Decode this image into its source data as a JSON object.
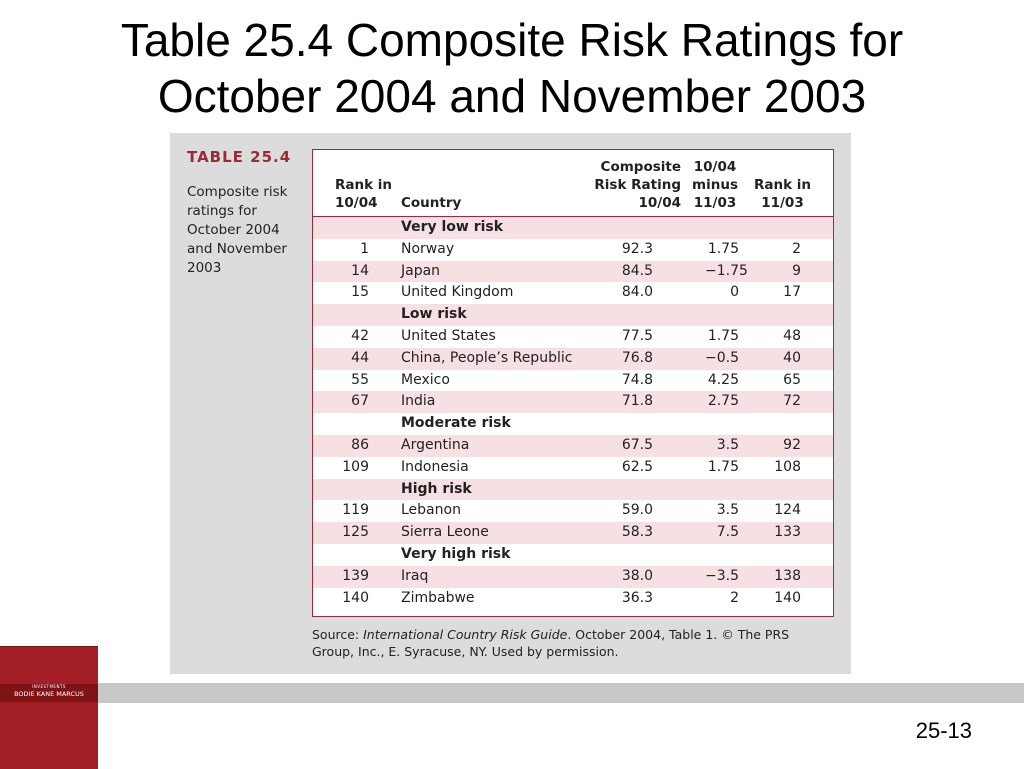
{
  "slide": {
    "title_line1": "Table 25.4 Composite Risk Ratings for",
    "title_line2": "October 2004 and November 2003",
    "page_number": "25-13"
  },
  "table": {
    "label": "TABLE 25.4",
    "caption_lines": [
      "Composite risk",
      "ratings for",
      "October 2004",
      "and November",
      "2003"
    ],
    "headers": {
      "rank_10_04": [
        "Rank in",
        "10/04"
      ],
      "country": [
        "Country"
      ],
      "composite": [
        "Composite",
        "Risk Rating",
        "10/04"
      ],
      "diff": [
        "10/04",
        "minus",
        "11/03"
      ],
      "rank_11_03": [
        "Rank in",
        "11/03"
      ]
    },
    "groups": [
      {
        "label": "Very low risk",
        "rows": [
          {
            "rank_10_04": "1",
            "country": "Norway",
            "composite": "92.3",
            "diff": "1.75",
            "rank_11_03": "2"
          },
          {
            "rank_10_04": "14",
            "country": "Japan",
            "composite": "84.5",
            "diff": "−1.75",
            "rank_11_03": "9"
          },
          {
            "rank_10_04": "15",
            "country": "United Kingdom",
            "composite": "84.0",
            "diff": "0",
            "rank_11_03": "17"
          }
        ]
      },
      {
        "label": "Low risk",
        "rows": [
          {
            "rank_10_04": "42",
            "country": "United States",
            "composite": "77.5",
            "diff": "1.75",
            "rank_11_03": "48"
          },
          {
            "rank_10_04": "44",
            "country": "China, People’s Republic",
            "composite": "76.8",
            "diff": "−0.5",
            "rank_11_03": "40"
          },
          {
            "rank_10_04": "55",
            "country": "Mexico",
            "composite": "74.8",
            "diff": "4.25",
            "rank_11_03": "65"
          },
          {
            "rank_10_04": "67",
            "country": "India",
            "composite": "71.8",
            "diff": "2.75",
            "rank_11_03": "72"
          }
        ]
      },
      {
        "label": "Moderate risk",
        "rows": [
          {
            "rank_10_04": "86",
            "country": "Argentina",
            "composite": "67.5",
            "diff": "3.5",
            "rank_11_03": "92"
          },
          {
            "rank_10_04": "109",
            "country": "Indonesia",
            "composite": "62.5",
            "diff": "1.75",
            "rank_11_03": "108"
          }
        ]
      },
      {
        "label": "High risk",
        "rows": [
          {
            "rank_10_04": "119",
            "country": "Lebanon",
            "composite": "59.0",
            "diff": "3.5",
            "rank_11_03": "124"
          },
          {
            "rank_10_04": "125",
            "country": "Sierra Leone",
            "composite": "58.3",
            "diff": "7.5",
            "rank_11_03": "133"
          }
        ]
      },
      {
        "label": "Very high risk",
        "rows": [
          {
            "rank_10_04": "139",
            "country": "Iraq",
            "composite": "38.0",
            "diff": "−3.5",
            "rank_11_03": "138"
          },
          {
            "rank_10_04": "140",
            "country": "Zimbabwe",
            "composite": "36.3",
            "diff": "2",
            "rank_11_03": "140"
          }
        ]
      }
    ],
    "source": {
      "prefix": "Source: ",
      "italic": "International Country Risk Guide",
      "suffix": ". October 2004, Table 1. © The PRS Group, Inc., E. Syracuse, NY. Used by permission."
    }
  },
  "book_cover": {
    "tag_top": "INVESTMENTS",
    "tag_bottom": "BODIE   KANE   MARCUS"
  },
  "colors": {
    "accent": "#a0283a",
    "row_shade": "#f6e0e3",
    "panel": "#dcdcdc",
    "band": "#c8c8c8",
    "cover": "#a31f25"
  }
}
